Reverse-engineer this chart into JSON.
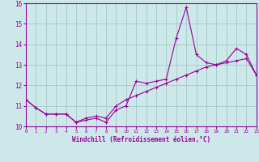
{
  "x": [
    0,
    1,
    2,
    3,
    4,
    5,
    6,
    7,
    8,
    9,
    10,
    11,
    12,
    13,
    14,
    15,
    16,
    17,
    18,
    19,
    20,
    21,
    22,
    23
  ],
  "line1_y": [
    11.3,
    10.9,
    10.6,
    10.6,
    10.6,
    10.2,
    10.3,
    10.4,
    10.2,
    10.8,
    11.0,
    12.2,
    12.1,
    12.2,
    12.3,
    14.3,
    15.8,
    13.5,
    13.1,
    13.0,
    13.2,
    13.8,
    13.5,
    12.5
  ],
  "line2_y": [
    11.3,
    10.9,
    10.6,
    10.6,
    10.6,
    10.2,
    10.4,
    10.5,
    10.4,
    11.0,
    11.3,
    11.5,
    11.7,
    11.9,
    12.1,
    12.3,
    12.5,
    12.7,
    12.9,
    13.0,
    13.1,
    13.2,
    13.3,
    12.5
  ],
  "line_color": "#990099",
  "bg_color": "#cce8e8",
  "grid_color": "#aacccc",
  "xlabel": "Windchill (Refroidissement éolien,°C)",
  "ylim": [
    10,
    16
  ],
  "xlim": [
    0,
    23
  ],
  "yticks": [
    10,
    11,
    12,
    13,
    14,
    15,
    16
  ],
  "xticks": [
    0,
    1,
    2,
    3,
    4,
    5,
    6,
    7,
    8,
    9,
    10,
    11,
    12,
    13,
    14,
    15,
    16,
    17,
    18,
    19,
    20,
    21,
    22,
    23
  ]
}
